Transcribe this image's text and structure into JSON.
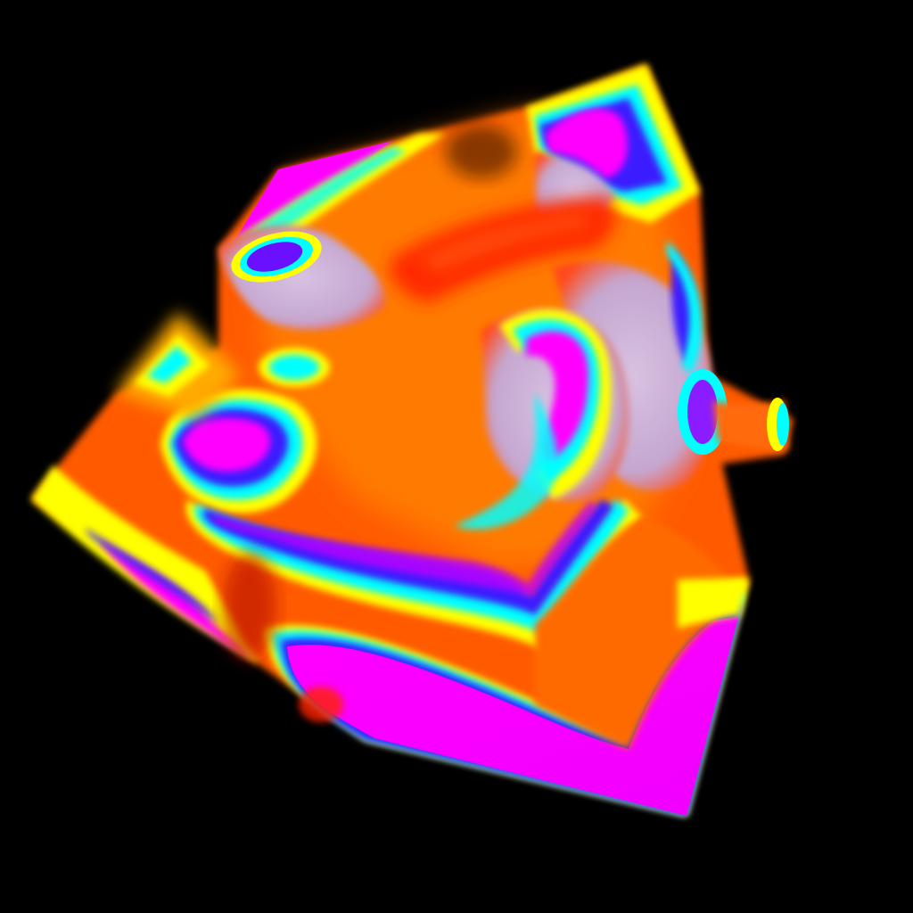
{
  "scene": {
    "subject": "volume-render-cube",
    "background_color": "#000000",
    "colormap": [
      "#ff00ff",
      "#0000ff",
      "#00ffff",
      "#00ff00",
      "#ffff00",
      "#ff8000",
      "#ff3000",
      "#ff0000"
    ],
    "dominant_colors": {
      "magenta": "#ff00ff",
      "blue": "#3a1cff",
      "cyan": "#00ffff",
      "green": "#7dff00",
      "yellow": "#ffff00",
      "orange": "#ff7a00",
      "red_orange": "#ff3a00",
      "pale_lavender": "#c9b0d8"
    }
  }
}
